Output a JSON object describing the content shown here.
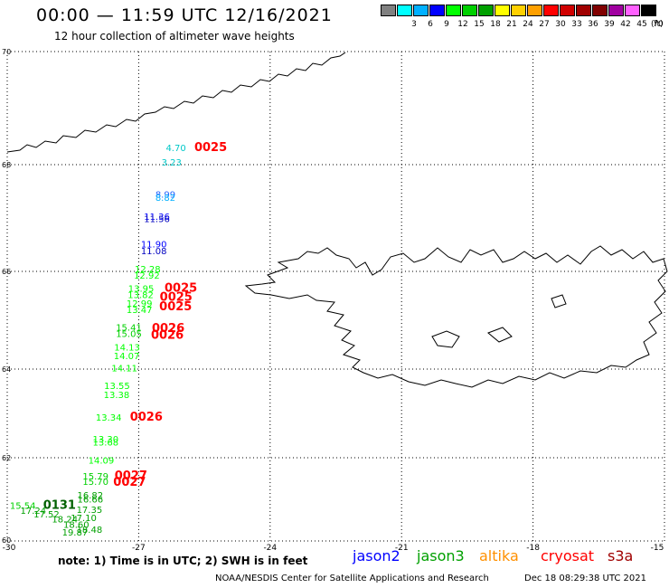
{
  "header": {
    "title": "00:00 — 11:59 UTC 12/16/2021",
    "subtitle": "12 hour collection of altimeter wave heights"
  },
  "legend": {
    "unit": "(ft)",
    "items": [
      {
        "label": "",
        "color": "#808080"
      },
      {
        "label": "3",
        "color": "#00ffff"
      },
      {
        "label": "6",
        "color": "#00b0ff"
      },
      {
        "label": "9",
        "color": "#0000ff"
      },
      {
        "label": "12",
        "color": "#00ff00"
      },
      {
        "label": "15",
        "color": "#00d000"
      },
      {
        "label": "18",
        "color": "#00a000"
      },
      {
        "label": "21",
        "color": "#ffff00"
      },
      {
        "label": "24",
        "color": "#ffd000"
      },
      {
        "label": "27",
        "color": "#ffa000"
      },
      {
        "label": "30",
        "color": "#ff0000"
      },
      {
        "label": "33",
        "color": "#d00000"
      },
      {
        "label": "36",
        "color": "#a00000"
      },
      {
        "label": "39",
        "color": "#800000"
      },
      {
        "label": "42",
        "color": "#a000a0"
      },
      {
        "label": "45",
        "color": "#ff60ff"
      },
      {
        "label": "70",
        "color": "#000000"
      }
    ]
  },
  "axes": {
    "x_ticks": [
      "-30",
      "-27",
      "-24",
      "-21",
      "-18",
      "-15"
    ],
    "y_ticks": [
      "70",
      "68",
      "66",
      "64",
      "62",
      "60"
    ]
  },
  "observations": [
    {
      "text": "4.70",
      "color": "#00c8c8",
      "lon": -26.38,
      "lat": 68.24
    },
    {
      "text": "0025",
      "color": "#ff0000",
      "lon": -25.73,
      "lat": 68.24,
      "bold": true
    },
    {
      "text": "3.23",
      "color": "#00c8c8",
      "lon": -26.48,
      "lat": 67.98
    },
    {
      "text": "8.99",
      "color": "#2060ff",
      "lon": -26.62,
      "lat": 67.38
    },
    {
      "text": "8.82",
      "color": "#00b0ff",
      "lon": -26.62,
      "lat": 67.32
    },
    {
      "text": "11.36",
      "color": "#0000ff",
      "lon": -26.88,
      "lat": 66.97
    },
    {
      "text": "11.56",
      "color": "#0000c0",
      "lon": -26.88,
      "lat": 66.92
    },
    {
      "text": "11.90",
      "color": "#0000ff",
      "lon": -26.95,
      "lat": 66.45
    },
    {
      "text": "11.08",
      "color": "#0000c0",
      "lon": -26.95,
      "lat": 66.32
    },
    {
      "text": "12.28",
      "color": "#00ff00",
      "lon": -27.09,
      "lat": 65.98
    },
    {
      "text": "12.92",
      "color": "#00ff00",
      "lon": -27.11,
      "lat": 65.85
    },
    {
      "text": "13.95",
      "color": "#00ff00",
      "lon": -27.24,
      "lat": 65.58
    },
    {
      "text": "0025",
      "color": "#ff0000",
      "lon": -26.41,
      "lat": 65.58,
      "bold": true
    },
    {
      "text": "13.82",
      "color": "#00ff00",
      "lon": -27.25,
      "lat": 65.45
    },
    {
      "text": "0025",
      "color": "#ff0000",
      "lon": -26.52,
      "lat": 65.4,
      "bold": true
    },
    {
      "text": "12.99",
      "color": "#00ff00",
      "lon": -27.28,
      "lat": 65.28
    },
    {
      "text": "0025",
      "color": "#ff0000",
      "lon": -26.53,
      "lat": 65.2,
      "bold": true
    },
    {
      "text": "13.47",
      "color": "#00ff00",
      "lon": -27.28,
      "lat": 65.15
    },
    {
      "text": "15.41",
      "color": "#00d000",
      "lon": -27.52,
      "lat": 64.79
    },
    {
      "text": "0026",
      "color": "#ff0000",
      "lon": -26.7,
      "lat": 64.76,
      "bold": true
    },
    {
      "text": "15.05",
      "color": "#00d000",
      "lon": -27.52,
      "lat": 64.66
    },
    {
      "text": "0026",
      "color": "#ff0000",
      "lon": -26.72,
      "lat": 64.62,
      "bold": true
    },
    {
      "text": "14.13",
      "color": "#00ff00",
      "lon": -27.56,
      "lat": 64.38
    },
    {
      "text": "14.07",
      "color": "#00ff00",
      "lon": -27.57,
      "lat": 64.2
    },
    {
      "text": "14.11",
      "color": "#00ff00",
      "lon": -27.62,
      "lat": 63.95
    },
    {
      "text": "13.55",
      "color": "#00ff00",
      "lon": -27.79,
      "lat": 63.55
    },
    {
      "text": "13.38",
      "color": "#00ff00",
      "lon": -27.8,
      "lat": 63.35
    },
    {
      "text": "13.34",
      "color": "#00ff00",
      "lon": -27.98,
      "lat": 62.84
    },
    {
      "text": "0026",
      "color": "#ff0000",
      "lon": -27.2,
      "lat": 62.84,
      "bold": true
    },
    {
      "text": "13.30",
      "color": "#00ff00",
      "lon": -28.05,
      "lat": 62.35
    },
    {
      "text": "13.68",
      "color": "#00ff00",
      "lon": -28.05,
      "lat": 62.28
    },
    {
      "text": "14.09",
      "color": "#00ff00",
      "lon": -28.15,
      "lat": 61.86
    },
    {
      "text": "15.79",
      "color": "#00d000",
      "lon": -28.28,
      "lat": 61.48
    },
    {
      "text": "0027",
      "color": "#ff0000",
      "lon": -27.55,
      "lat": 61.48,
      "bold": true
    },
    {
      "text": "15.70",
      "color": "#00d000",
      "lon": -28.28,
      "lat": 61.35
    },
    {
      "text": "0027",
      "color": "#ff0000",
      "lon": -27.58,
      "lat": 61.33,
      "bold": true
    },
    {
      "text": "16.82",
      "color": "#00a000",
      "lon": -28.4,
      "lat": 61.02
    },
    {
      "text": "16.66",
      "color": "#00a000",
      "lon": -28.4,
      "lat": 60.92
    },
    {
      "text": "15.54",
      "color": "#00d000",
      "lon": -29.94,
      "lat": 60.77
    },
    {
      "text": "0131",
      "color": "#006000",
      "lon": -29.18,
      "lat": 60.77,
      "bold": true
    },
    {
      "text": "17.35",
      "color": "#00a000",
      "lon": -28.42,
      "lat": 60.67
    },
    {
      "text": "17.24",
      "color": "#00a000",
      "lon": -29.7,
      "lat": 60.65
    },
    {
      "text": "17.52",
      "color": "#00a000",
      "lon": -29.4,
      "lat": 60.57
    },
    {
      "text": "17.10",
      "color": "#00a000",
      "lon": -28.55,
      "lat": 60.48
    },
    {
      "text": "18.24",
      "color": "#00a000",
      "lon": -28.98,
      "lat": 60.45
    },
    {
      "text": "18.60",
      "color": "#00a000",
      "lon": -28.72,
      "lat": 60.32
    },
    {
      "text": "18.48",
      "color": "#00a000",
      "lon": -28.42,
      "lat": 60.2
    },
    {
      "text": "19.87",
      "color": "#00a000",
      "lon": -28.75,
      "lat": 60.13
    }
  ],
  "satellites": [
    {
      "name": "jason2",
      "color": "#0000ff"
    },
    {
      "name": "jason3",
      "color": "#00a000"
    },
    {
      "name": "altika",
      "color": "#ff9000"
    },
    {
      "name": "cryosat",
      "color": "#ff0000"
    },
    {
      "name": "s3a",
      "color": "#a00000"
    }
  ],
  "footer": {
    "note": "note:  1) Time is in UTC;  2) SWH is in feet",
    "credit": "NOAA/NESDIS Center for Satellite Applications and Research",
    "timestamp": "Dec 18 08:29:38 UTC 2021"
  }
}
